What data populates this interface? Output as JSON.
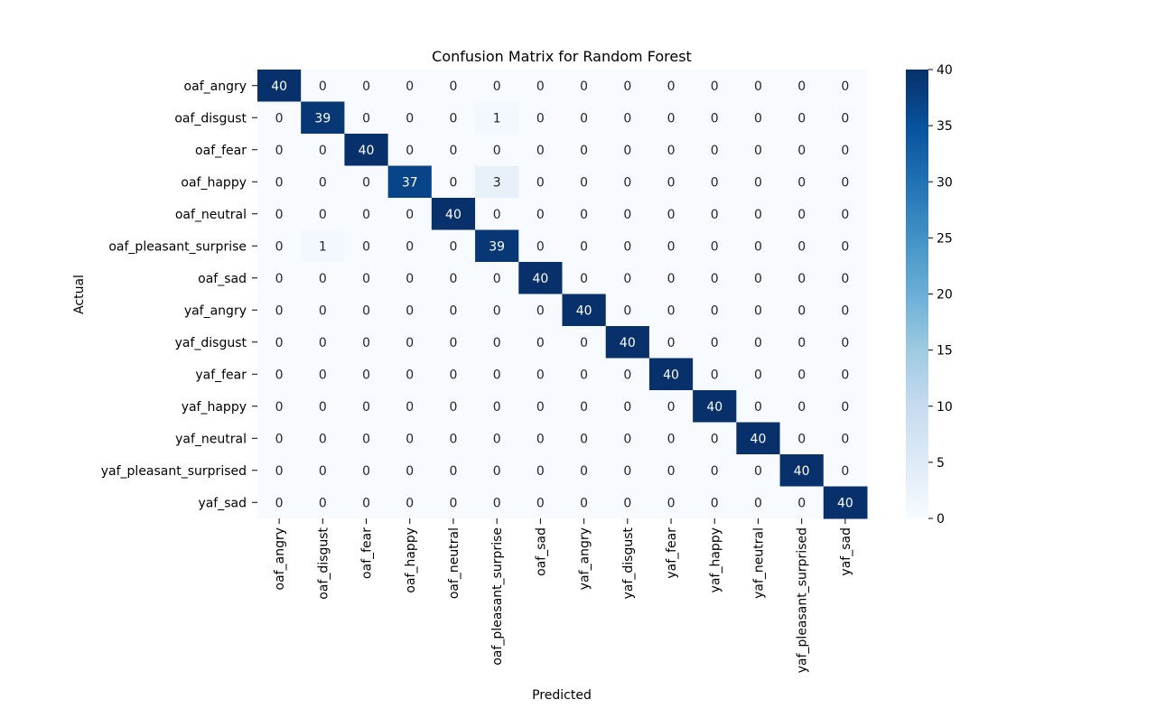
{
  "chart_data": {
    "type": "heatmap",
    "title": "Confusion Matrix for Random Forest",
    "xlabel": "Predicted",
    "ylabel": "Actual",
    "x_categories": [
      "oaf_angry",
      "oaf_disgust",
      "oaf_fear",
      "oaf_happy",
      "oaf_neutral",
      "oaf_pleasant_surprise",
      "oaf_sad",
      "yaf_angry",
      "yaf_disgust",
      "yaf_fear",
      "yaf_happy",
      "yaf_neutral",
      "yaf_pleasant_surprised",
      "yaf_sad"
    ],
    "y_categories": [
      "oaf_angry",
      "oaf_disgust",
      "oaf_fear",
      "oaf_happy",
      "oaf_neutral",
      "oaf_pleasant_surprise",
      "oaf_sad",
      "yaf_angry",
      "yaf_disgust",
      "yaf_fear",
      "yaf_happy",
      "yaf_neutral",
      "yaf_pleasant_surprised",
      "yaf_sad"
    ],
    "values": [
      [
        40,
        0,
        0,
        0,
        0,
        0,
        0,
        0,
        0,
        0,
        0,
        0,
        0,
        0
      ],
      [
        0,
        39,
        0,
        0,
        0,
        1,
        0,
        0,
        0,
        0,
        0,
        0,
        0,
        0
      ],
      [
        0,
        0,
        40,
        0,
        0,
        0,
        0,
        0,
        0,
        0,
        0,
        0,
        0,
        0
      ],
      [
        0,
        0,
        0,
        37,
        0,
        3,
        0,
        0,
        0,
        0,
        0,
        0,
        0,
        0
      ],
      [
        0,
        0,
        0,
        0,
        40,
        0,
        0,
        0,
        0,
        0,
        0,
        0,
        0,
        0
      ],
      [
        0,
        1,
        0,
        0,
        0,
        39,
        0,
        0,
        0,
        0,
        0,
        0,
        0,
        0
      ],
      [
        0,
        0,
        0,
        0,
        0,
        0,
        40,
        0,
        0,
        0,
        0,
        0,
        0,
        0
      ],
      [
        0,
        0,
        0,
        0,
        0,
        0,
        0,
        40,
        0,
        0,
        0,
        0,
        0,
        0
      ],
      [
        0,
        0,
        0,
        0,
        0,
        0,
        0,
        0,
        40,
        0,
        0,
        0,
        0,
        0
      ],
      [
        0,
        0,
        0,
        0,
        0,
        0,
        0,
        0,
        0,
        40,
        0,
        0,
        0,
        0
      ],
      [
        0,
        0,
        0,
        0,
        0,
        0,
        0,
        0,
        0,
        0,
        40,
        0,
        0,
        0
      ],
      [
        0,
        0,
        0,
        0,
        0,
        0,
        0,
        0,
        0,
        0,
        0,
        40,
        0,
        0
      ],
      [
        0,
        0,
        0,
        0,
        0,
        0,
        0,
        0,
        0,
        0,
        0,
        0,
        40,
        0
      ],
      [
        0,
        0,
        0,
        0,
        0,
        0,
        0,
        0,
        0,
        0,
        0,
        0,
        0,
        40
      ]
    ],
    "colormap": "Blues",
    "color_low": "#f7fbff",
    "color_high": "#08306b",
    "vmin": 0,
    "vmax": 40,
    "colorbar_ticks": [
      0,
      5,
      10,
      15,
      20,
      25,
      30,
      35,
      40
    ],
    "annot": true
  }
}
